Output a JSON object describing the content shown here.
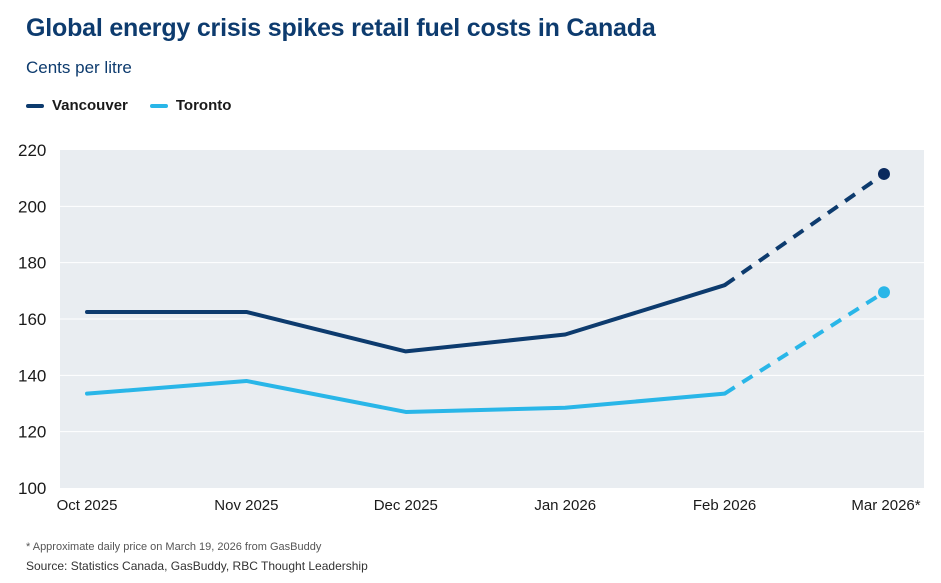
{
  "title": "Global energy crisis spikes retail fuel costs in Canada",
  "subtitle": "Cents per litre",
  "footnote": "* Approximate daily price on March 19, 2026 from GasBuddy",
  "source": "Source: Statistics Canada, GasBuddy, RBC Thought Leadership",
  "colors": {
    "vancouver": "#0d3b6e",
    "toronto": "#29b6e8",
    "vancouver_dot": "#0a2a5e",
    "plot_bg": "#e9edf1"
  },
  "chart_data": {
    "type": "line",
    "title": "Global energy crisis spikes retail fuel costs in Canada",
    "ylabel": "Cents per litre",
    "categories": [
      "Oct 2025",
      "Nov 2025",
      "Dec 2025",
      "Jan 2026",
      "Feb 2026",
      "Mar 2026*"
    ],
    "ylim": [
      100,
      220
    ],
    "yticks": [
      100,
      120,
      140,
      160,
      180,
      200,
      220
    ],
    "grid": true,
    "legend_position": "top-left",
    "series": [
      {
        "name": "Vancouver",
        "values": [
          162.5,
          162.5,
          148.5,
          154.5,
          172,
          211.5
        ],
        "dashed_from_index": 4
      },
      {
        "name": "Toronto",
        "values": [
          133.5,
          138,
          127,
          128.5,
          133.5,
          169.5
        ],
        "dashed_from_index": 4
      }
    ]
  }
}
